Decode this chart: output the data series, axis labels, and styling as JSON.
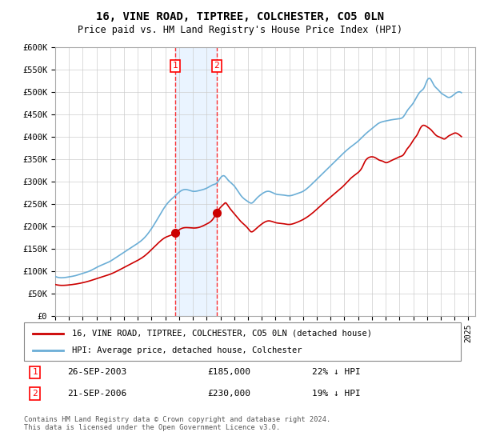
{
  "title": "16, VINE ROAD, TIPTREE, COLCHESTER, CO5 0LN",
  "subtitle": "Price paid vs. HM Land Registry's House Price Index (HPI)",
  "footer": "Contains HM Land Registry data © Crown copyright and database right 2024.\nThis data is licensed under the Open Government Licence v3.0.",
  "legend_line1": "16, VINE ROAD, TIPTREE, COLCHESTER, CO5 0LN (detached house)",
  "legend_line2": "HPI: Average price, detached house, Colchester",
  "sale1_date": "26-SEP-2003",
  "sale1_price": "£185,000",
  "sale1_hpi": "22% ↓ HPI",
  "sale2_date": "21-SEP-2006",
  "sale2_price": "£230,000",
  "sale2_hpi": "19% ↓ HPI",
  "sale1_year": 2003.73,
  "sale1_value": 185000,
  "sale2_year": 2006.72,
  "sale2_value": 230000,
  "hpi_color": "#6baed6",
  "price_color": "#cc0000",
  "background_color": "#ffffff",
  "grid_color": "#cccccc",
  "shade_color": "#ddeeff",
  "ylim": [
    0,
    600000
  ],
  "xlim_start": 1995,
  "xlim_end": 2025.5
}
